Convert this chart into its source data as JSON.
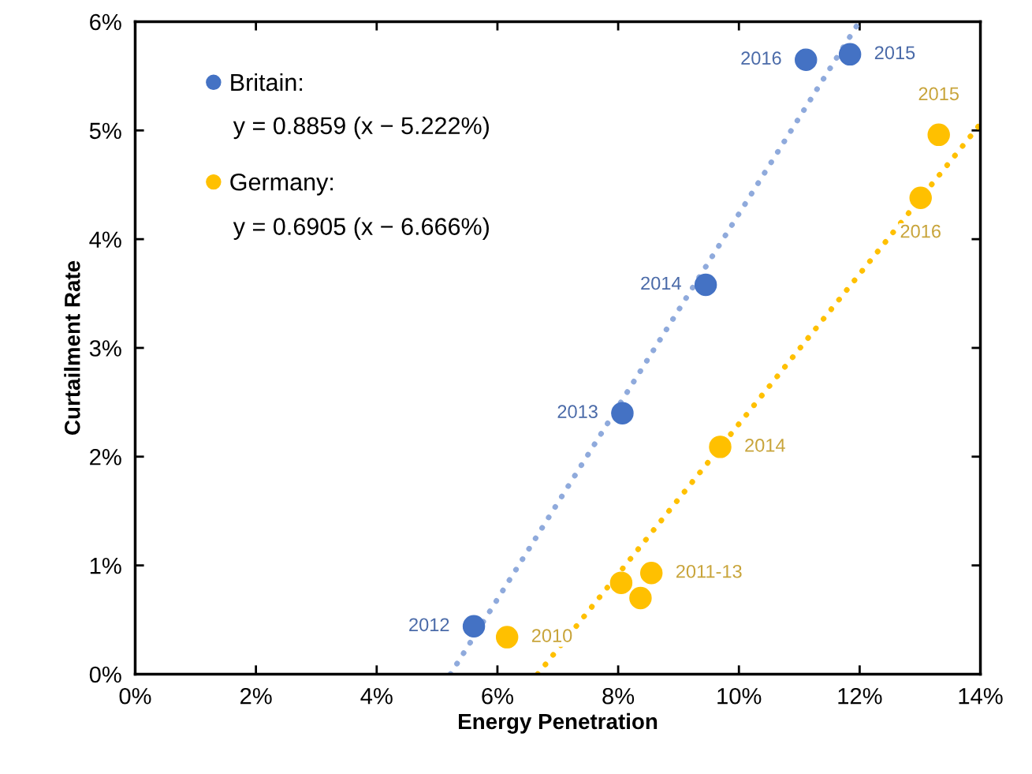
{
  "chart_data": {
    "type": "scatter",
    "xlabel": "Energy Penetration",
    "ylabel": "Curtailment Rate",
    "series": [
      {
        "name": "Britain:",
        "color": "#4472c4",
        "marker": "circle",
        "x": [
          5.61,
          8.07,
          9.45,
          11.11,
          11.84
        ],
        "values": [
          0.44,
          2.4,
          3.58,
          5.65,
          5.7
        ]
      },
      {
        "name": "Germany:",
        "color": "#ffc000",
        "marker": "circle",
        "x": [
          6.16,
          8.05,
          8.37,
          8.55,
          9.69,
          13.01,
          13.31
        ],
        "values": [
          0.34,
          0.84,
          0.7,
          0.93,
          2.09,
          4.38,
          4.96
        ]
      },
      {
        "color": "#8faadc",
        "type": "line",
        "line_style": "dotted",
        "marker": "none",
        "x": [
          5.222,
          11.995
        ],
        "values": [
          0,
          6
        ]
      },
      {
        "color": "#ffc000",
        "type": "line",
        "line_style": "dotted",
        "marker": "none",
        "x": [
          6.666,
          14
        ],
        "values": [
          0,
          5.06
        ]
      }
    ],
    "annotations": [
      "y = 0.8859 (x − 5.222%)",
      "y = 0.6905 (x − 6.666%)",
      {
        "text": "2012",
        "x": 5.61,
        "y": 0.44
      },
      {
        "text": "2013",
        "x": 8.07,
        "y": 2.4
      },
      {
        "text": "2014",
        "x": 9.45,
        "y": 3.58
      },
      {
        "text": "2016",
        "x": 11.11,
        "y": 5.65
      },
      {
        "text": "2015",
        "x": 11.84,
        "y": 5.7
      },
      {
        "text": "2010",
        "x": 6.16,
        "y": 0.34
      },
      {
        "text": "2011-13",
        "x": 8.55,
        "y": 0.93
      },
      {
        "text": "2014",
        "x": 9.69,
        "y": 2.09
      },
      {
        "text": "2016",
        "x": 13.01,
        "y": 4.38
      },
      {
        "text": "2015",
        "x": 13.31,
        "y": 4.96
      }
    ],
    "xlim": [
      0,
      14
    ],
    "xticks": [
      {
        "value": 0,
        "label": "0%"
      },
      {
        "value": 2,
        "label": "2%"
      },
      {
        "value": 4,
        "label": "4%"
      },
      {
        "value": 6,
        "label": "6%"
      },
      {
        "value": 8,
        "label": "8%"
      },
      {
        "value": 10,
        "label": "10%"
      },
      {
        "value": 12,
        "label": "12%"
      },
      {
        "value": 14,
        "label": "14%"
      }
    ],
    "ylim": [
      0,
      6
    ],
    "yticks": [
      {
        "value": 0,
        "label": "0%"
      },
      {
        "value": 1,
        "label": "1%"
      },
      {
        "value": 2,
        "label": "2%"
      },
      {
        "value": 3,
        "label": "3%"
      },
      {
        "value": 4,
        "label": "4%"
      },
      {
        "value": 5,
        "label": "5%"
      },
      {
        "value": 6,
        "label": "6%"
      }
    ],
    "grid": false,
    "legend": "top left"
  }
}
